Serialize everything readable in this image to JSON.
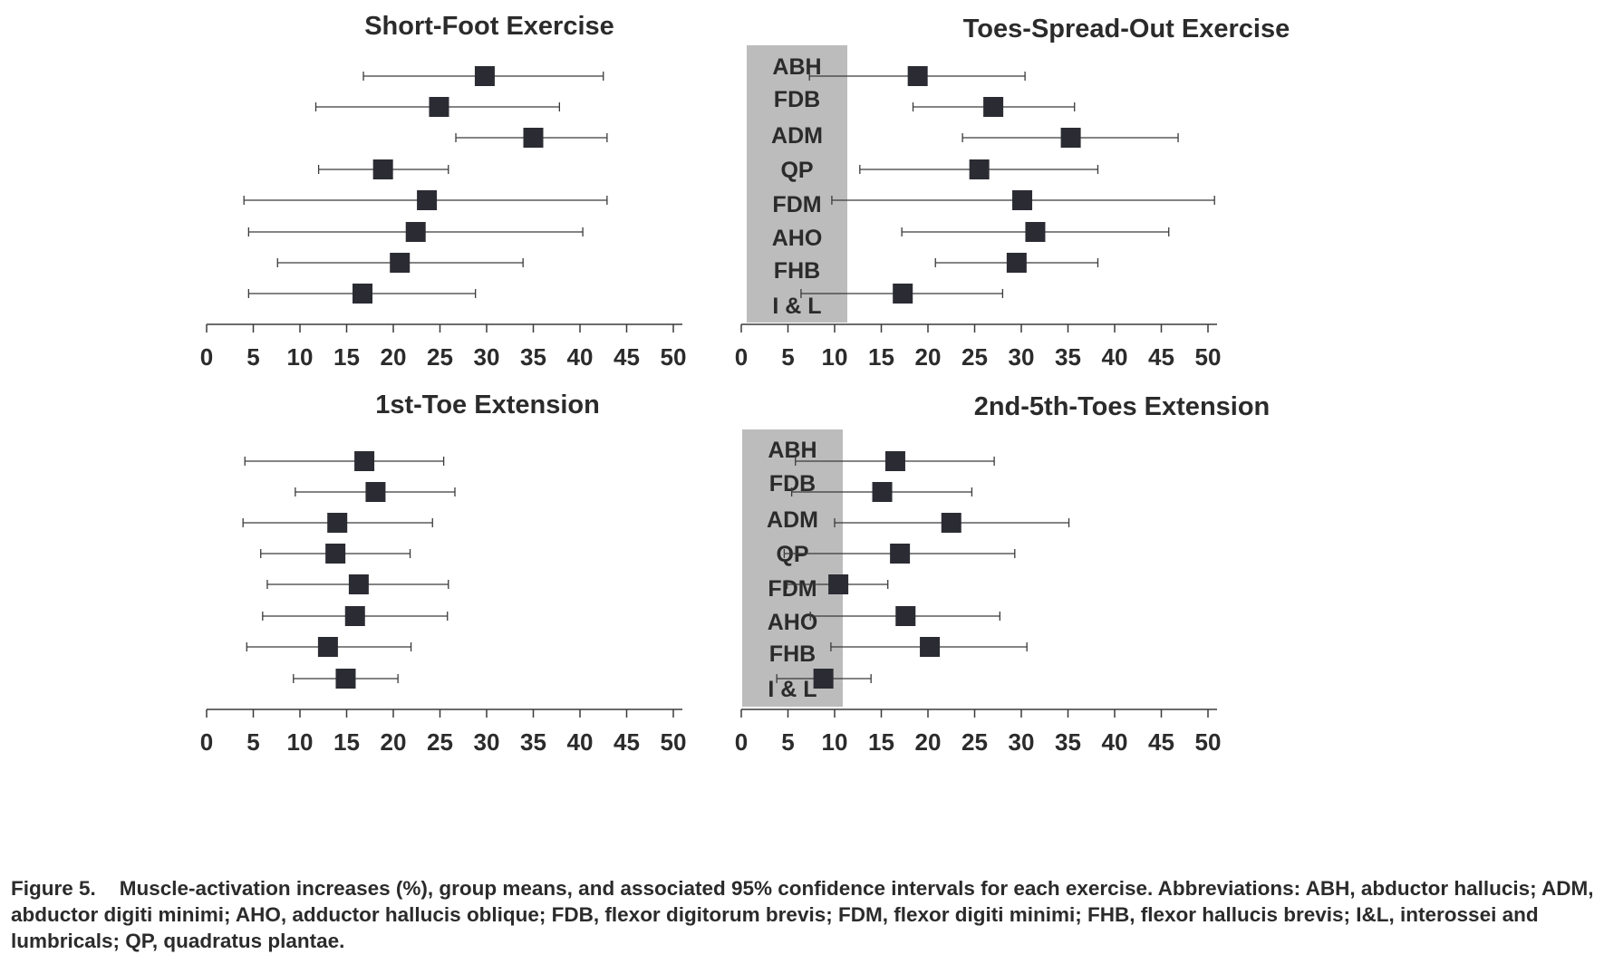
{
  "colors": {
    "marker": "#2b2b33",
    "band": "#bcbcbc",
    "line": "#3a3a3a",
    "text": "#2b2b2b"
  },
  "muscles": [
    "ABH",
    "FDB",
    "ADM",
    "QP",
    "FDM",
    "AHO",
    "FHB",
    "I & L"
  ],
  "chart_data": [
    {
      "type": "scatter",
      "title": "Short-Foot Exercise",
      "xlim": [
        0,
        50
      ],
      "xticks": [
        "0",
        "5",
        "10",
        "15",
        "20",
        "25",
        "30",
        "35",
        "40",
        "45",
        "50"
      ],
      "categories": [
        "ABH",
        "FDB",
        "ADM",
        "QP",
        "FDM",
        "AHO",
        "FHB",
        "I & L"
      ],
      "mean": [
        29.8,
        24.9,
        35.0,
        18.9,
        23.6,
        22.4,
        20.7,
        16.7
      ],
      "ci_low": [
        16.8,
        11.7,
        26.7,
        12.0,
        4.0,
        4.5,
        7.6,
        4.5
      ],
      "ci_high": [
        42.5,
        37.8,
        42.9,
        25.9,
        42.9,
        40.3,
        33.9,
        28.8
      ]
    },
    {
      "type": "scatter",
      "title": "Toes-Spread-Out Exercise",
      "xlim": [
        0,
        50
      ],
      "xticks": [
        "0",
        "5",
        "10",
        "15",
        "20",
        "25",
        "30",
        "35",
        "40",
        "45",
        "50"
      ],
      "categories": [
        "ABH",
        "FDB",
        "ADM",
        "QP",
        "FDM",
        "AHO",
        "FHB",
        "I & L"
      ],
      "mean": [
        18.9,
        27.0,
        35.3,
        25.5,
        30.1,
        31.5,
        29.5,
        17.3
      ],
      "ci_low": [
        7.3,
        18.4,
        23.7,
        12.7,
        9.7,
        17.2,
        20.8,
        6.4
      ],
      "ci_high": [
        30.4,
        35.7,
        46.8,
        38.2,
        50.7,
        45.8,
        38.2,
        28.0
      ]
    },
    {
      "type": "scatter",
      "title": "1st-Toe Extension",
      "xlim": [
        0,
        50
      ],
      "xticks": [
        "0",
        "5",
        "10",
        "15",
        "20",
        "25",
        "30",
        "35",
        "40",
        "45",
        "50"
      ],
      "categories": [
        "ABH",
        "FDB",
        "ADM",
        "QP",
        "FDM",
        "AHO",
        "FHB",
        "I & L"
      ],
      "mean": [
        16.9,
        18.1,
        14.0,
        13.8,
        16.3,
        15.9,
        13.0,
        14.9
      ],
      "ci_low": [
        4.1,
        9.5,
        3.9,
        5.8,
        6.5,
        6.0,
        4.3,
        9.3
      ],
      "ci_high": [
        25.4,
        26.6,
        24.2,
        21.8,
        25.9,
        25.8,
        21.9,
        20.5
      ]
    },
    {
      "type": "scatter",
      "title": "2nd-5th-Toes Extension",
      "xlim": [
        0,
        50
      ],
      "xticks": [
        "0",
        "5",
        "10",
        "15",
        "20",
        "25",
        "30",
        "35",
        "40",
        "45",
        "50"
      ],
      "categories": [
        "ABH",
        "FDB",
        "ADM",
        "QP",
        "FDM",
        "AHO",
        "FHB",
        "I & L"
      ],
      "mean": [
        16.5,
        15.1,
        22.5,
        17.0,
        10.4,
        17.6,
        20.2,
        8.8
      ],
      "ci_low": [
        5.8,
        5.4,
        10.0,
        4.6,
        4.9,
        7.4,
        9.6,
        3.8
      ],
      "ci_high": [
        27.1,
        24.7,
        35.1,
        29.3,
        15.7,
        27.7,
        30.6,
        13.9
      ]
    }
  ],
  "caption": {
    "label": "Figure 5.",
    "text": "Muscle-activation increases (%), group means, and associated 95% confidence intervals for each exercise. Abbreviations: ABH, abductor hallucis; ADM, abductor digiti minimi; AHO, adductor hallucis oblique; FDB, flexor digitorum brevis; FDM, flexor digiti minimi; FHB, flexor hallucis brevis; I&L, interossei and lumbricals; QP, quadratus plantae."
  }
}
